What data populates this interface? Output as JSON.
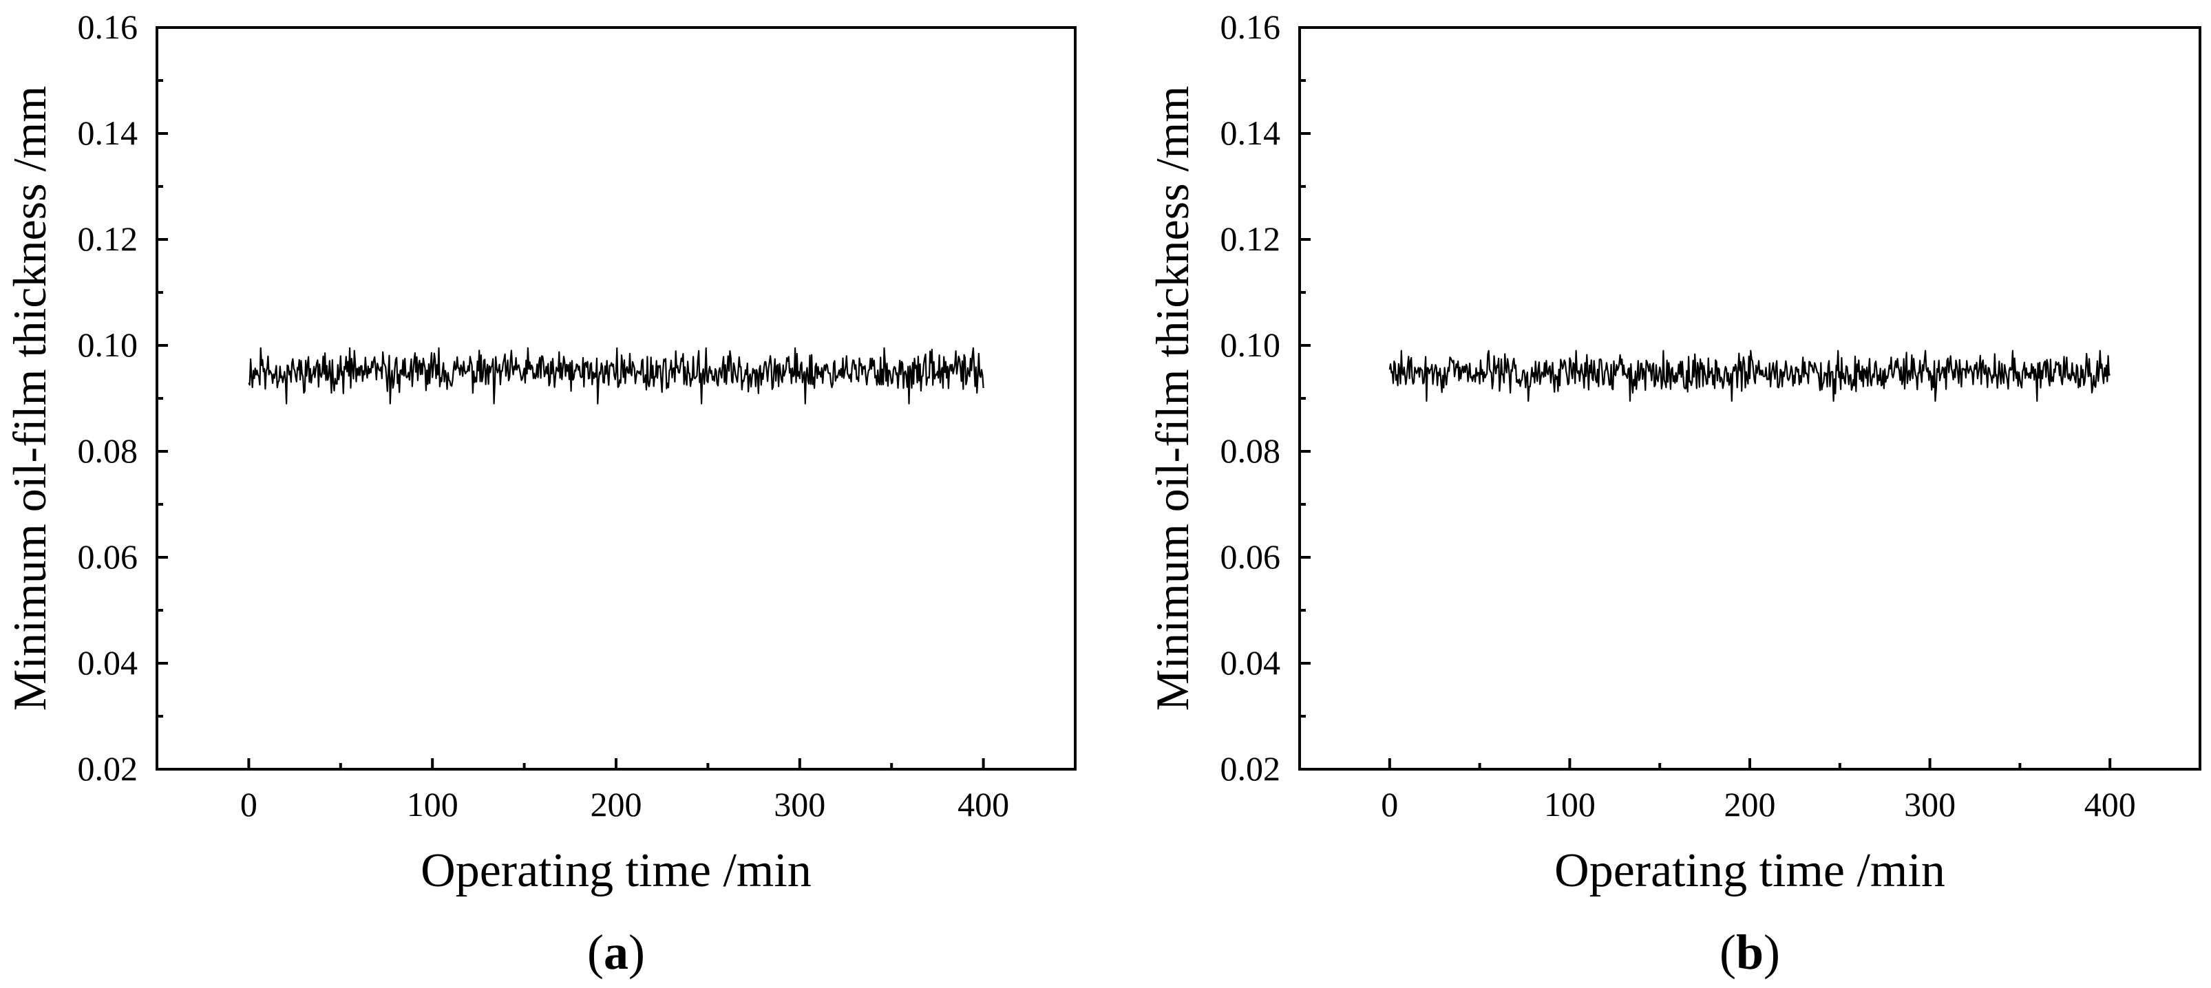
{
  "chart_data": [
    {
      "type": "line",
      "panel_label": "a",
      "xlabel": "Operating time /min",
      "ylabel": "Minimum oil-film thickness /mm",
      "xlim": [
        -50,
        450
      ],
      "ylim": [
        0.02,
        0.16
      ],
      "xticks": [
        "0",
        "100",
        "200",
        "300",
        "400"
      ],
      "yticks": [
        "0.02",
        "0.04",
        "0.06",
        "0.08",
        "0.10",
        "0.12",
        "0.14",
        "0.16"
      ],
      "grid": false,
      "series": [
        {
          "color": "#000000",
          "x_range": [
            0,
            400
          ],
          "points": 800,
          "mean": 0.095,
          "min": 0.089,
          "max": 0.0995,
          "seed": 11
        }
      ]
    },
    {
      "type": "line",
      "panel_label": "b",
      "xlabel": "Operating time /min",
      "ylabel": "Minimum oil-film thickness /mm",
      "xlim": [
        -50,
        450
      ],
      "ylim": [
        0.02,
        0.16
      ],
      "xticks": [
        "0",
        "100",
        "200",
        "300",
        "400"
      ],
      "yticks": [
        "0.02",
        "0.04",
        "0.06",
        "0.08",
        "0.10",
        "0.12",
        "0.14",
        "0.16"
      ],
      "grid": false,
      "series": [
        {
          "color": "#000000",
          "x_range": [
            0,
            400
          ],
          "points": 800,
          "mean": 0.0948,
          "min": 0.0895,
          "max": 0.099,
          "seed": 29
        }
      ]
    }
  ]
}
